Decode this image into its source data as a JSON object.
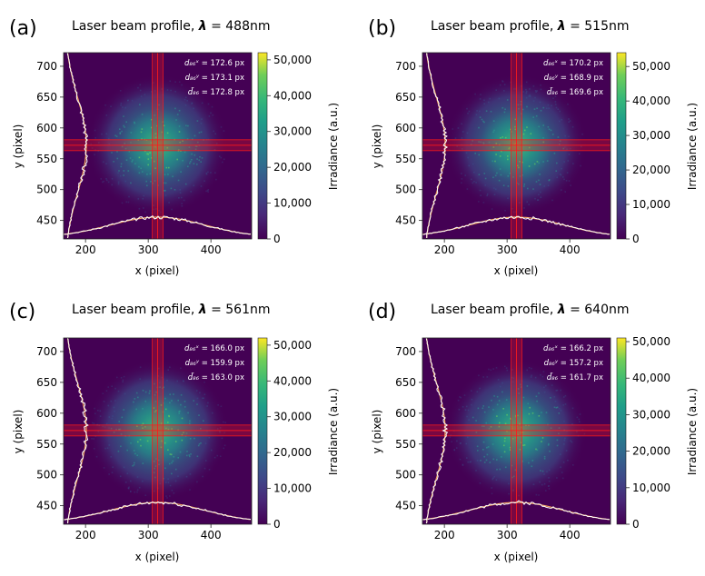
{
  "chart_data": [
    {
      "type": "heatmap",
      "panel_label": "(a)",
      "title_prefix": "Laser beam profile, ",
      "lambda_symbol": "λ",
      "lambda_value": " = 488nm",
      "xlabel": "x (pixel)",
      "ylabel": "y (pixel)",
      "xlim": [
        165,
        465
      ],
      "ylim": [
        420,
        722
      ],
      "xticks": [
        "200",
        "300",
        "400"
      ],
      "yticks": [
        "450",
        "500",
        "550",
        "600",
        "650",
        "700"
      ],
      "colorbar_label": "Irradiance (a.u.)",
      "colorbar_max": 52000,
      "colorbar_ticks": [
        "0",
        "10,000",
        "20,000",
        "30,000",
        "40,000",
        "50,000"
      ],
      "beam_center": [
        315,
        572
      ],
      "stats": [
        {
          "symbol": "d₈₆ˣ",
          "value": " = 172.6 px"
        },
        {
          "symbol": "d₈₆ʸ",
          "value": " = 173.1 px"
        },
        {
          "symbol": "d̄₈₆",
          "value": " = 172.8 px"
        }
      ]
    },
    {
      "type": "heatmap",
      "panel_label": "(b)",
      "title_prefix": "Laser beam profile, ",
      "lambda_symbol": "λ",
      "lambda_value": " = 515nm",
      "xlabel": "x (pixel)",
      "ylabel": "y (pixel)",
      "xlim": [
        165,
        465
      ],
      "ylim": [
        420,
        722
      ],
      "xticks": [
        "200",
        "300",
        "400"
      ],
      "yticks": [
        "450",
        "500",
        "550",
        "600",
        "650",
        "700"
      ],
      "colorbar_label": "Irradiance (a.u.)",
      "colorbar_max": 54000,
      "colorbar_ticks": [
        "0",
        "10,000",
        "20,000",
        "30,000",
        "40,000",
        "50,000"
      ],
      "beam_center": [
        315,
        572
      ],
      "stats": [
        {
          "symbol": "d₈₆ˣ",
          "value": " = 170.2 px"
        },
        {
          "symbol": "d₈₆ʸ",
          "value": " = 168.9 px"
        },
        {
          "symbol": "d̄₈₆",
          "value": " = 169.6 px"
        }
      ]
    },
    {
      "type": "heatmap",
      "panel_label": "(c)",
      "title_prefix": "Laser beam profile, ",
      "lambda_symbol": "λ",
      "lambda_value": " = 561nm",
      "xlabel": "x (pixel)",
      "ylabel": "y (pixel)",
      "xlim": [
        165,
        465
      ],
      "ylim": [
        420,
        722
      ],
      "xticks": [
        "200",
        "300",
        "400"
      ],
      "yticks": [
        "450",
        "500",
        "550",
        "600",
        "650",
        "700"
      ],
      "colorbar_label": "Irradiance (a.u.)",
      "colorbar_max": 52000,
      "colorbar_ticks": [
        "0",
        "10,000",
        "20,000",
        "30,000",
        "40,000",
        "50,000"
      ],
      "beam_center": [
        315,
        572
      ],
      "stats": [
        {
          "symbol": "d₈₆ˣ",
          "value": " = 166.0 px"
        },
        {
          "symbol": "d₈₆ʸ",
          "value": " = 159.9 px"
        },
        {
          "symbol": "d̄₈₆",
          "value": " = 163.0 px"
        }
      ]
    },
    {
      "type": "heatmap",
      "panel_label": "(d)",
      "title_prefix": "Laser beam profile, ",
      "lambda_symbol": "λ",
      "lambda_value": " = 640nm",
      "xlabel": "x (pixel)",
      "ylabel": "y (pixel)",
      "xlim": [
        165,
        465
      ],
      "ylim": [
        420,
        722
      ],
      "xticks": [
        "200",
        "300",
        "400"
      ],
      "yticks": [
        "450",
        "500",
        "550",
        "600",
        "650",
        "700"
      ],
      "colorbar_label": "Irradiance (a.u.)",
      "colorbar_max": 51000,
      "colorbar_ticks": [
        "0",
        "10,000",
        "20,000",
        "30,000",
        "40,000",
        "50,000"
      ],
      "beam_center": [
        315,
        572
      ],
      "stats": [
        {
          "symbol": "d₈₆ˣ",
          "value": " = 166.2 px"
        },
        {
          "symbol": "d₈₆ʸ",
          "value": " = 157.2 px"
        },
        {
          "symbol": "d̄₈₆",
          "value": " = 161.7 px"
        }
      ]
    }
  ],
  "colors": {
    "background": "#440154",
    "beam_mid": "#21918c",
    "beam_hot": "#5ec962",
    "crosshair": "#ff1a1a",
    "profile_line": "#ffffff",
    "profile_fit": "#f4a460"
  }
}
